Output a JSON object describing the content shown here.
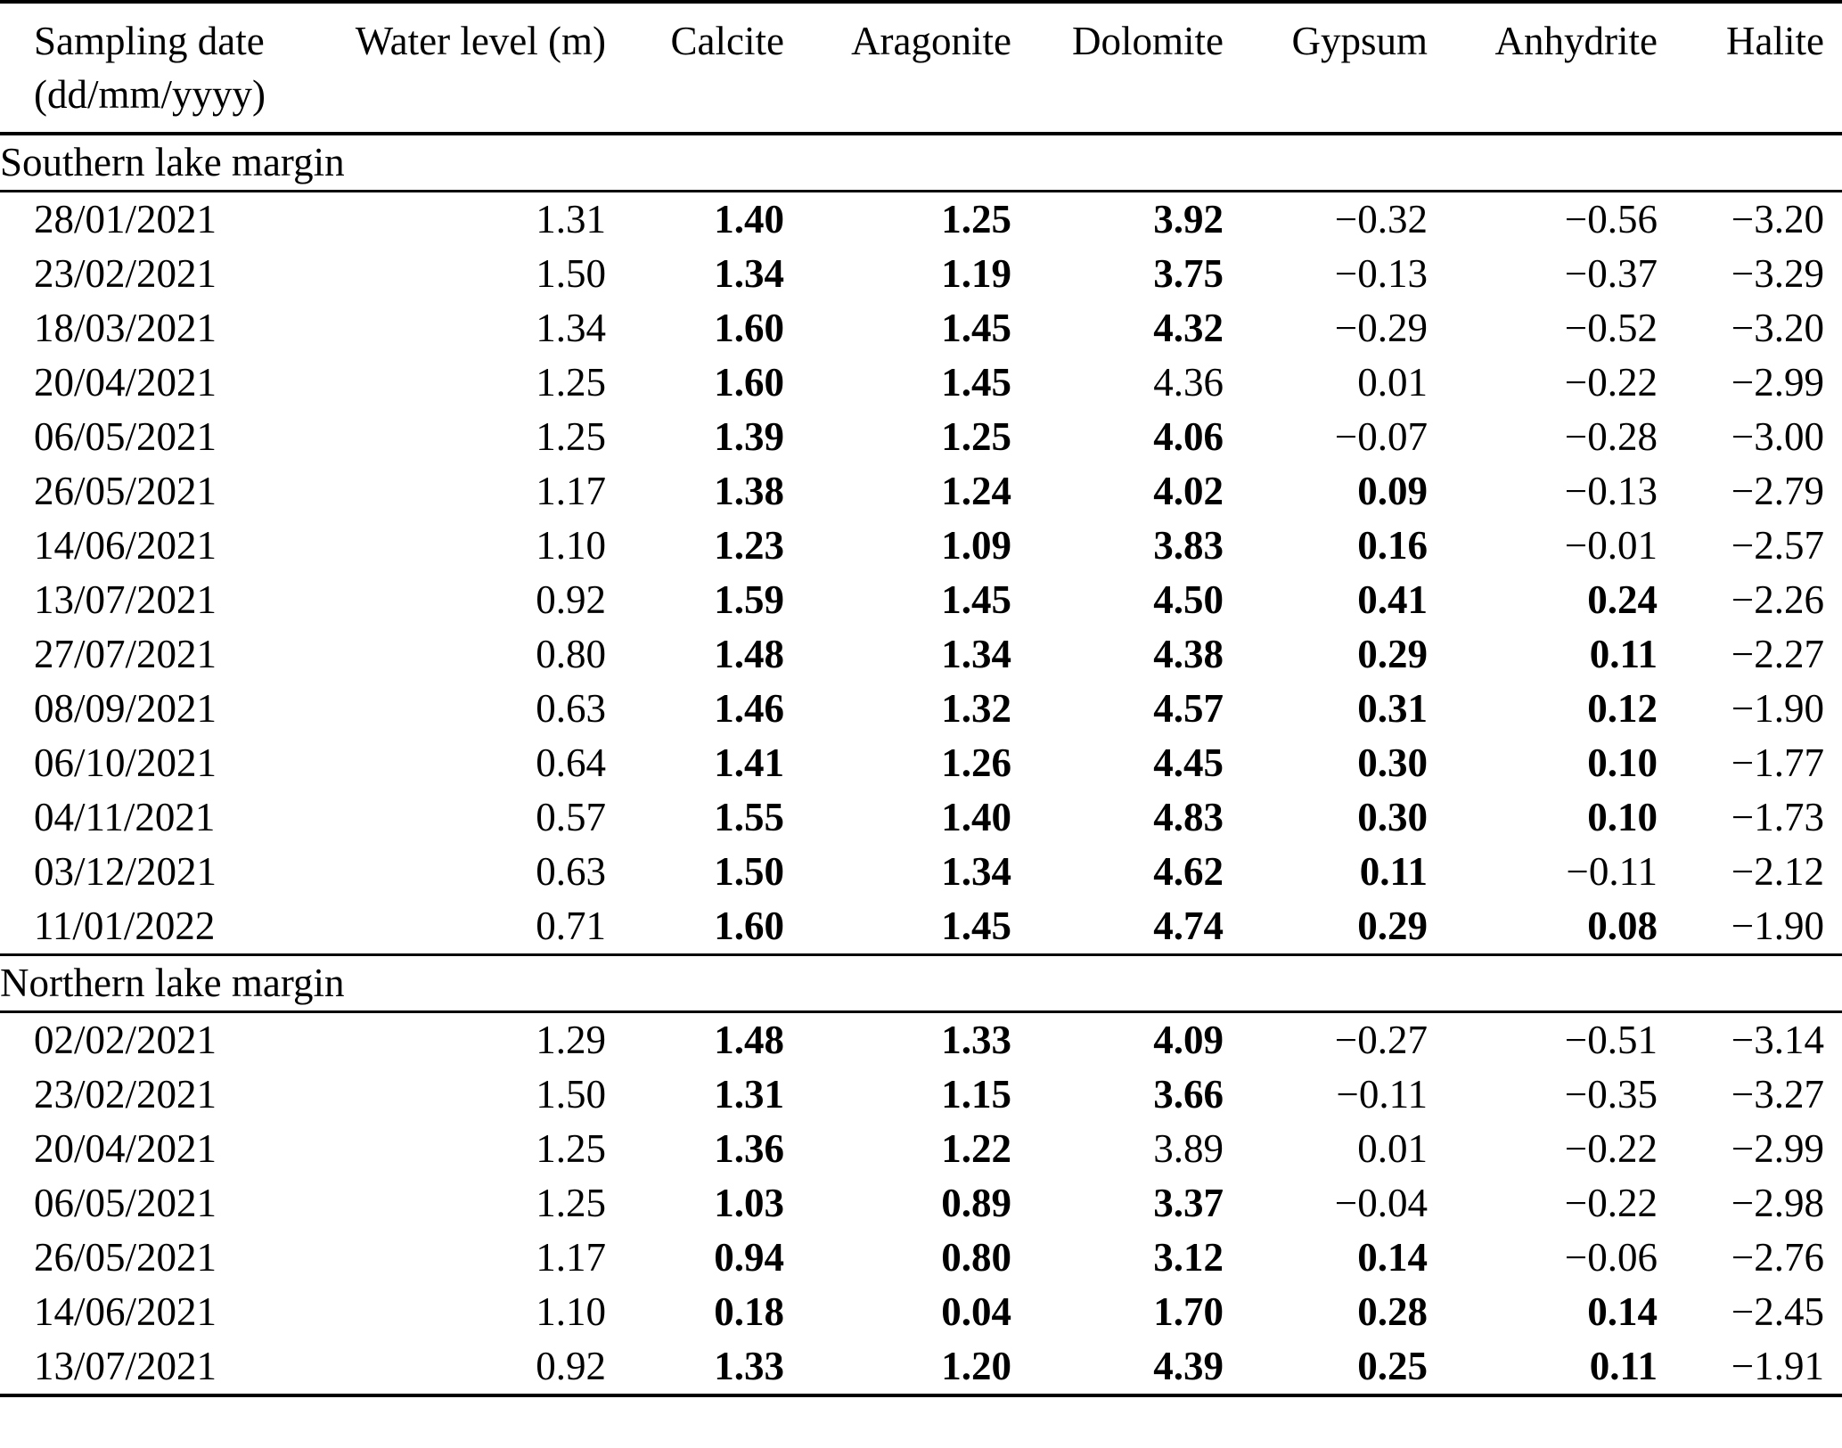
{
  "table": {
    "headers": {
      "date_line1": "Sampling date",
      "date_line2": "(dd/mm/yyyy)",
      "cols": [
        "Water level (m)",
        "Calcite",
        "Aragonite",
        "Dolomite",
        "Gypsum",
        "Anhydrite",
        "Halite"
      ]
    },
    "sections": [
      {
        "title": "Southern lake margin",
        "rows": [
          {
            "date": "28/01/2021",
            "water_level": "1.31",
            "values": [
              "1.40",
              "1.25",
              "3.92",
              "−0.32",
              "−0.56",
              "−3.20"
            ],
            "bold": [
              true,
              true,
              true,
              false,
              false,
              false
            ]
          },
          {
            "date": "23/02/2021",
            "water_level": "1.50",
            "values": [
              "1.34",
              "1.19",
              "3.75",
              "−0.13",
              "−0.37",
              "−3.29"
            ],
            "bold": [
              true,
              true,
              true,
              false,
              false,
              false
            ]
          },
          {
            "date": "18/03/2021",
            "water_level": "1.34",
            "values": [
              "1.60",
              "1.45",
              "4.32",
              "−0.29",
              "−0.52",
              "−3.20"
            ],
            "bold": [
              true,
              true,
              true,
              false,
              false,
              false
            ]
          },
          {
            "date": "20/04/2021",
            "water_level": "1.25",
            "values": [
              "1.60",
              "1.45",
              "4.36",
              "0.01",
              "−0.22",
              "−2.99"
            ],
            "bold": [
              true,
              true,
              false,
              false,
              false,
              false
            ]
          },
          {
            "date": "06/05/2021",
            "water_level": "1.25",
            "values": [
              "1.39",
              "1.25",
              "4.06",
              "−0.07",
              "−0.28",
              "−3.00"
            ],
            "bold": [
              true,
              true,
              true,
              false,
              false,
              false
            ]
          },
          {
            "date": "26/05/2021",
            "water_level": "1.17",
            "values": [
              "1.38",
              "1.24",
              "4.02",
              "0.09",
              "−0.13",
              "−2.79"
            ],
            "bold": [
              true,
              true,
              true,
              true,
              false,
              false
            ]
          },
          {
            "date": "14/06/2021",
            "water_level": "1.10",
            "values": [
              "1.23",
              "1.09",
              "3.83",
              "0.16",
              "−0.01",
              "−2.57"
            ],
            "bold": [
              true,
              true,
              true,
              true,
              false,
              false
            ]
          },
          {
            "date": "13/07/2021",
            "water_level": "0.92",
            "values": [
              "1.59",
              "1.45",
              "4.50",
              "0.41",
              "0.24",
              "−2.26"
            ],
            "bold": [
              true,
              true,
              true,
              true,
              true,
              false
            ]
          },
          {
            "date": "27/07/2021",
            "water_level": "0.80",
            "values": [
              "1.48",
              "1.34",
              "4.38",
              "0.29",
              "0.11",
              "−2.27"
            ],
            "bold": [
              true,
              true,
              true,
              true,
              true,
              false
            ]
          },
          {
            "date": "08/09/2021",
            "water_level": "0.63",
            "values": [
              "1.46",
              "1.32",
              "4.57",
              "0.31",
              "0.12",
              "−1.90"
            ],
            "bold": [
              true,
              true,
              true,
              true,
              true,
              false
            ]
          },
          {
            "date": "06/10/2021",
            "water_level": "0.64",
            "values": [
              "1.41",
              "1.26",
              "4.45",
              "0.30",
              "0.10",
              "−1.77"
            ],
            "bold": [
              true,
              true,
              true,
              true,
              true,
              false
            ]
          },
          {
            "date": "04/11/2021",
            "water_level": "0.57",
            "values": [
              "1.55",
              "1.40",
              "4.83",
              "0.30",
              "0.10",
              "−1.73"
            ],
            "bold": [
              true,
              true,
              true,
              true,
              true,
              false
            ]
          },
          {
            "date": "03/12/2021",
            "water_level": "0.63",
            "values": [
              "1.50",
              "1.34",
              "4.62",
              "0.11",
              "−0.11",
              "−2.12"
            ],
            "bold": [
              true,
              true,
              true,
              true,
              false,
              false
            ]
          },
          {
            "date": "11/01/2022",
            "water_level": "0.71",
            "values": [
              "1.60",
              "1.45",
              "4.74",
              "0.29",
              "0.08",
              "−1.90"
            ],
            "bold": [
              true,
              true,
              true,
              true,
              true,
              false
            ]
          }
        ]
      },
      {
        "title": "Northern lake margin",
        "rows": [
          {
            "date": "02/02/2021",
            "water_level": "1.29",
            "values": [
              "1.48",
              "1.33",
              "4.09",
              "−0.27",
              "−0.51",
              "−3.14"
            ],
            "bold": [
              true,
              true,
              true,
              false,
              false,
              false
            ]
          },
          {
            "date": "23/02/2021",
            "water_level": "1.50",
            "values": [
              "1.31",
              "1.15",
              "3.66",
              "−0.11",
              "−0.35",
              "−3.27"
            ],
            "bold": [
              true,
              true,
              true,
              false,
              false,
              false
            ]
          },
          {
            "date": "20/04/2021",
            "water_level": "1.25",
            "values": [
              "1.36",
              "1.22",
              "3.89",
              "0.01",
              "−0.22",
              "−2.99"
            ],
            "bold": [
              true,
              true,
              false,
              false,
              false,
              false
            ]
          },
          {
            "date": "06/05/2021",
            "water_level": "1.25",
            "values": [
              "1.03",
              "0.89",
              "3.37",
              "−0.04",
              "−0.22",
              "−2.98"
            ],
            "bold": [
              true,
              true,
              true,
              false,
              false,
              false
            ]
          },
          {
            "date": "26/05/2021",
            "water_level": "1.17",
            "values": [
              "0.94",
              "0.80",
              "3.12",
              "0.14",
              "−0.06",
              "−2.76"
            ],
            "bold": [
              true,
              true,
              true,
              true,
              false,
              false
            ]
          },
          {
            "date": "14/06/2021",
            "water_level": "1.10",
            "values": [
              "0.18",
              "0.04",
              "1.70",
              "0.28",
              "0.14",
              "−2.45"
            ],
            "bold": [
              true,
              true,
              true,
              true,
              true,
              false
            ]
          },
          {
            "date": "13/07/2021",
            "water_level": "0.92",
            "values": [
              "1.33",
              "1.20",
              "4.39",
              "0.25",
              "0.11",
              "−1.91"
            ],
            "bold": [
              true,
              true,
              true,
              true,
              true,
              false
            ]
          }
        ]
      }
    ]
  }
}
